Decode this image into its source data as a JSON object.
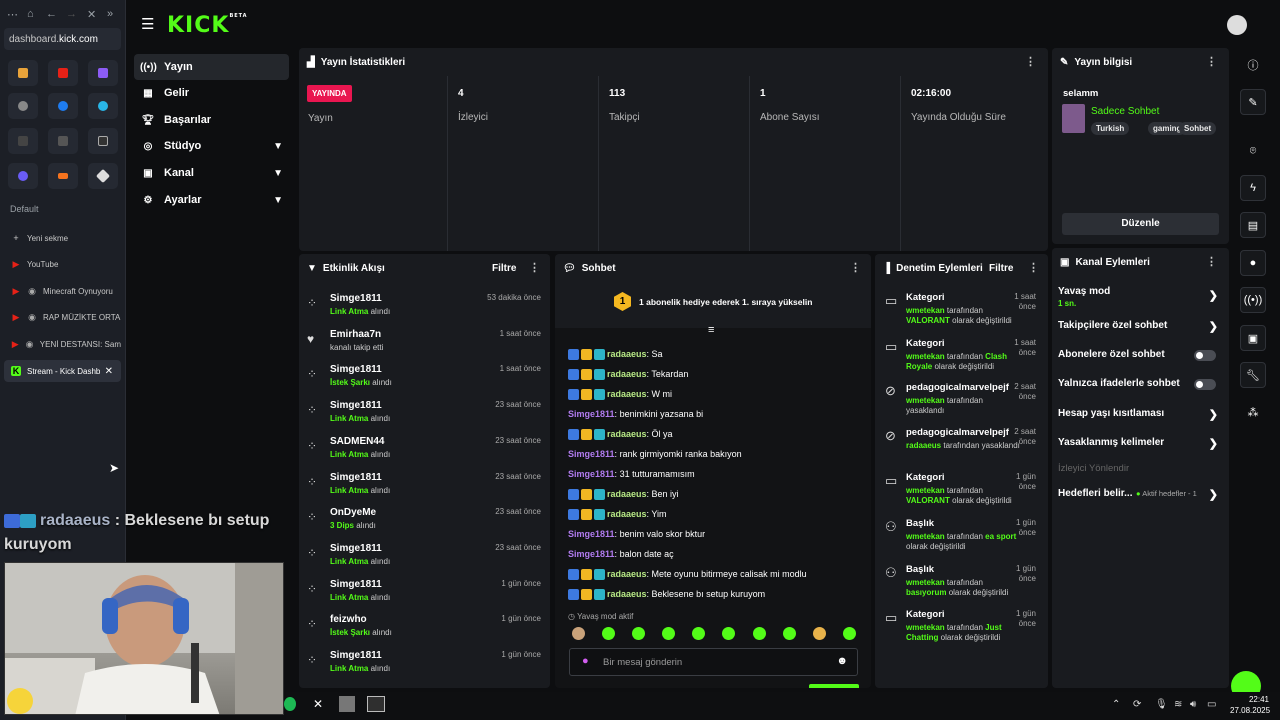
{
  "browser": {
    "url_prefix": "dashboard.",
    "url_domain": "kick.com",
    "group_label": "Default",
    "tabs": [
      {
        "label": "Yeni sekme",
        "icon": "plus-icon"
      },
      {
        "label": "YouTube",
        "icon": "youtube-icon"
      },
      {
        "label": "Minecraft Oynuyoru",
        "icon": "youtube-icon"
      },
      {
        "label": "RAP MÜZİKTE ORTA",
        "icon": "youtube-icon"
      },
      {
        "label": "YENİ DESTANSI: Sam",
        "icon": "youtube-icon"
      },
      {
        "label": "Stream - Kick Dashb",
        "icon": "kick-icon"
      }
    ]
  },
  "overlay": {
    "user": "radaaeus",
    "message": ": Beklesene bı setup kuruyom"
  },
  "app": {
    "logo": "KICK",
    "logo_badge": "BETA"
  },
  "nav": {
    "items": [
      {
        "label": "Yayın",
        "icon": "broadcast-icon"
      },
      {
        "label": "Gelir",
        "icon": "revenue-icon"
      },
      {
        "label": "Başarılar",
        "icon": "trophy-icon"
      },
      {
        "label": "Stüdyo",
        "icon": "studio-icon"
      },
      {
        "label": "Kanal",
        "icon": "channel-icon"
      },
      {
        "label": "Ayarlar",
        "icon": "settings-icon"
      }
    ]
  },
  "stats": {
    "title": "Yayın İstatistikleri",
    "live_badge": "YAYINDA",
    "live_label": "Yayın",
    "cells": [
      {
        "value": "4",
        "label": "İzleyici"
      },
      {
        "value": "113",
        "label": "Takipçi"
      },
      {
        "value": "1",
        "label": "Abone Sayısı"
      },
      {
        "value": "02:16:00",
        "label": "Yayında Olduğu Süre"
      }
    ]
  },
  "stream_info": {
    "title": "Yayın bilgisi",
    "stream_title": "selamm",
    "category": "Sadece Sohbet",
    "tags": [
      "Turkish",
      "gaming",
      "Sohbet"
    ],
    "edit_button": "Düzenle"
  },
  "activity": {
    "title": "Etkinlik Akışı",
    "filter": "Filtre",
    "items": [
      {
        "name": "Simge1811",
        "hl": "Link Atma",
        "rest": " alındı",
        "time": "53 dakika önce",
        "icon": "reward-icon"
      },
      {
        "name": "Emirhaa7n",
        "hl": "",
        "rest": "kanalı takip etti",
        "time": "1 saat önce",
        "icon": "heart-icon"
      },
      {
        "name": "Simge1811",
        "hl": "İstek Şarkı",
        "rest": " alındı",
        "time": "1 saat önce",
        "icon": "reward-icon"
      },
      {
        "name": "Simge1811",
        "hl": "Link Atma",
        "rest": " alındı",
        "time": "23 saat önce",
        "icon": "reward-icon"
      },
      {
        "name": "SADMEN44",
        "hl": "Link Atma",
        "rest": " alındı",
        "time": "23 saat önce",
        "icon": "reward-icon"
      },
      {
        "name": "Simge1811",
        "hl": "Link Atma",
        "rest": " alındı",
        "time": "23 saat önce",
        "icon": "reward-icon"
      },
      {
        "name": "OnDyeMe",
        "hl": "3 Dips",
        "rest": " alındı",
        "time": "23 saat önce",
        "icon": "reward-icon"
      },
      {
        "name": "Simge1811",
        "hl": "Link Atma",
        "rest": " alındı",
        "time": "23 saat önce",
        "icon": "reward-icon"
      },
      {
        "name": "Simge1811",
        "hl": "Link Atma",
        "rest": " alındı",
        "time": "1 gün önce",
        "icon": "reward-icon"
      },
      {
        "name": "feizwho",
        "hl": "İstek Şarkı",
        "rest": " alındı",
        "time": "1 gün önce",
        "icon": "reward-icon"
      },
      {
        "name": "Simge1811",
        "hl": "Link Atma",
        "rest": " alındı",
        "time": "1 gün önce",
        "icon": "reward-icon"
      }
    ]
  },
  "chat": {
    "title": "Sohbet",
    "pinned_number": "1",
    "pinned_text": "1 abonelik hediye ederek 1. sıraya yükselin",
    "messages": [
      {
        "user": "radaaeus",
        "text": "Sa",
        "badges": true,
        "color": "#b8e986"
      },
      {
        "user": "radaaeus",
        "text": "Tekardan",
        "badges": true,
        "color": "#b8e986"
      },
      {
        "user": "radaaeus",
        "text": "W mi",
        "badges": true,
        "color": "#b8e986"
      },
      {
        "user": "Simge1811",
        "text": "benimkini yazsana bi",
        "badges": false,
        "color": "#b27cf0"
      },
      {
        "user": "radaaeus",
        "text": "Öl ya",
        "badges": true,
        "color": "#b8e986"
      },
      {
        "user": "Simge1811",
        "text": "rank girmiyomki ranka bakıyon",
        "badges": false,
        "color": "#b27cf0"
      },
      {
        "user": "Simge1811",
        "text": "31 tutturamamısım",
        "badges": false,
        "color": "#b27cf0"
      },
      {
        "user": "radaaeus",
        "text": "Ben iyi",
        "badges": true,
        "color": "#b8e986"
      },
      {
        "user": "radaaeus",
        "text": "Yim",
        "badges": true,
        "color": "#b8e986"
      },
      {
        "user": "Simge1811",
        "text": "benim valo skor bktur",
        "badges": false,
        "color": "#b27cf0"
      },
      {
        "user": "Simge1811",
        "text": "balon date aç",
        "badges": false,
        "color": "#b27cf0"
      },
      {
        "user": "radaaeus",
        "text": "Mete oyunu bitirmeye calisak mi modlu",
        "badges": true,
        "color": "#b8e986"
      },
      {
        "user": "radaaeus",
        "text": "Beklesene bı setup kuruyom",
        "badges": true,
        "color": "#b8e986"
      }
    ],
    "slow_mode": "Yavaş mod aktif",
    "input_placeholder": "Bir mesaj gönderin"
  },
  "moderation": {
    "title": "Denetim Eylemleri",
    "filter": "Filtre",
    "items": [
      {
        "title": "Kategori",
        "time": "1 saat önce",
        "icon": "category-icon",
        "by": "wmetekan",
        "mid": " tarafından ",
        "val": "VALORANT",
        "end": " olarak değiştirildi"
      },
      {
        "title": "Kategori",
        "time": "1 saat önce",
        "icon": "category-icon",
        "by": "wmetekan",
        "mid": " tarafından ",
        "val": "Clash Royale",
        "end": " olarak değiştirildi"
      },
      {
        "title": "pedagogicalmarvelpejf",
        "time": "2 saat önce",
        "icon": "ban-icon",
        "by": "wmetekan",
        "mid": " tarafından yasaklandı",
        "val": "",
        "end": ""
      },
      {
        "title": "pedagogicalmarvelpejf",
        "time": "2 saat önce",
        "icon": "ban-icon",
        "by": "radaaeus",
        "mid": " tarafından yasaklandı",
        "val": "",
        "end": ""
      },
      {
        "title": "Kategori",
        "time": "1 gün önce",
        "icon": "category-icon",
        "by": "wmetekan",
        "mid": " tarafından ",
        "val": "VALORANT",
        "end": " olarak değiştirildi"
      },
      {
        "title": "Başlık",
        "time": "1 gün önce",
        "icon": "title-icon",
        "by": "wmetekan",
        "mid": " tarafından ",
        "val": "ea sport",
        "end": " olarak değiştirildi"
      },
      {
        "title": "Başlık",
        "time": "1 gün önce",
        "icon": "title-icon",
        "by": "wmetekan",
        "mid": " tarafından ",
        "val": "basıyorum",
        "end": " olarak değiştirildi"
      },
      {
        "title": "Kategori",
        "time": "1 gün önce",
        "icon": "category-icon",
        "by": "wmetekan",
        "mid": " tarafından ",
        "val": "Just Chatting",
        "end": " olarak değiştirildi"
      }
    ]
  },
  "channel_actions": {
    "title": "Kanal Eylemleri",
    "slow_mode": "Yavaş mod",
    "slow_mode_value": "1 sn.",
    "followers_only": "Takipçilere özel sohbet",
    "subscribers_only": "Abonelere özel sohbet",
    "emotes_only": "Yalnızca ifadelerle sohbet",
    "account_age": "Hesap yaşı kısıtlaması",
    "banned_words": "Yasaklanmış kelimeler",
    "viewer_redirect": "İzleyici Yönlendir",
    "goals": "Hedefleri belir...",
    "goals_status": "Aktif hedefler - 1"
  },
  "taskbar": {
    "time": "22:41",
    "date": "27.08.2025"
  },
  "colors": {
    "accent": "#53fc18",
    "live": "#e91650",
    "panel": "#191b1f",
    "bg": "#0d0e10"
  }
}
